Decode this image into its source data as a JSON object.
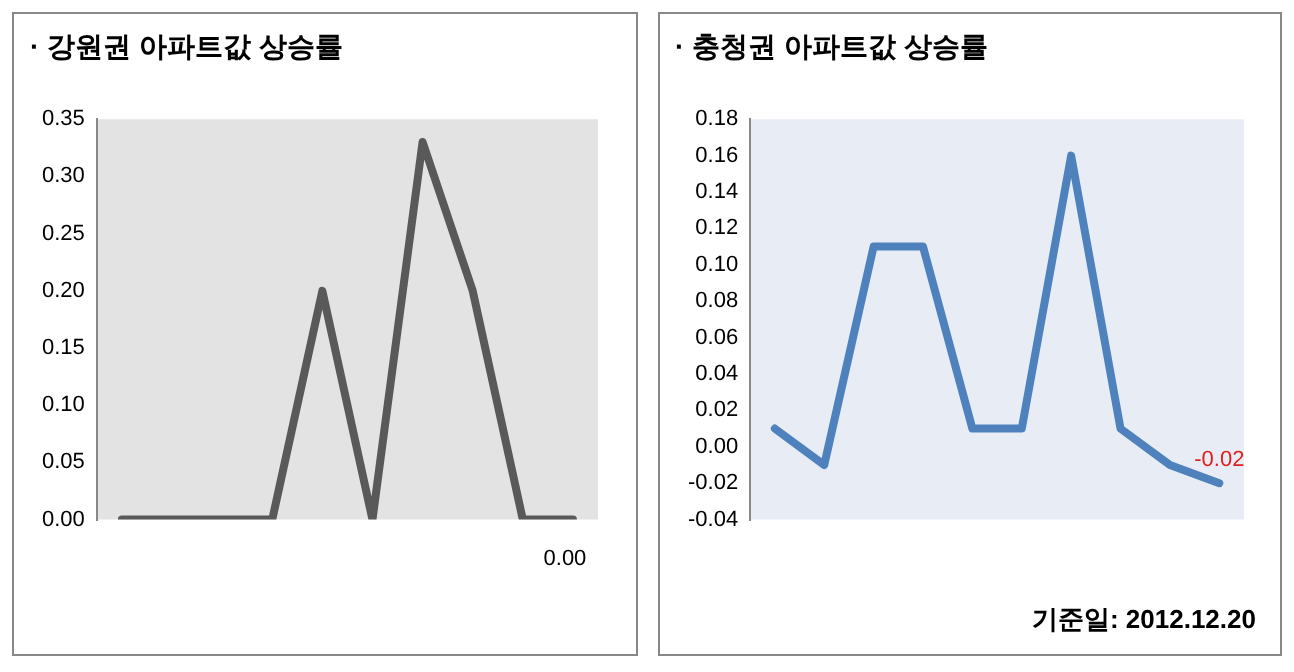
{
  "chart_data": [
    {
      "type": "line",
      "title": "· 강원권 아파트값 상승률",
      "categories": [
        null,
        null,
        null,
        null,
        null,
        null,
        null,
        null,
        null,
        null
      ],
      "series": [
        {
          "color": "#595959",
          "values": [
            0,
            0,
            0,
            0,
            0.2,
            0,
            0.33,
            0.2,
            0,
            0
          ],
          "value_labels": [
            null,
            null,
            null,
            null,
            null,
            null,
            null,
            null,
            null,
            "0.00"
          ]
        }
      ],
      "ylim": [
        0,
        0.35
      ],
      "yticks": [
        {
          "value": 0,
          "label": "0.00"
        },
        {
          "value": 0.05,
          "label": "0.05"
        },
        {
          "value": 0.1,
          "label": "0.10"
        },
        {
          "value": 0.15,
          "label": "0.15"
        },
        {
          "value": 0.2,
          "label": "0.20"
        },
        {
          "value": 0.25,
          "label": "0.25"
        },
        {
          "value": 0.3,
          "label": "0.30"
        },
        {
          "value": 0.35,
          "label": "0.35"
        }
      ],
      "grid": false,
      "legend": false,
      "marker": "none",
      "line_style": "solid"
    },
    {
      "type": "line",
      "title": "· 충청권 아파트값 상승률",
      "categories": [
        null,
        null,
        null,
        null,
        null,
        null,
        null,
        null,
        null,
        null
      ],
      "series": [
        {
          "color": "#4f81bd",
          "values": [
            0.01,
            -0.01,
            0.11,
            0.11,
            0.01,
            0.01,
            0.16,
            0.01,
            -0.01,
            -0.02
          ],
          "value_labels": [
            null,
            null,
            null,
            null,
            null,
            null,
            null,
            null,
            null,
            "-0.02"
          ]
        }
      ],
      "ylim": [
        -0.04,
        0.18
      ],
      "yticks": [
        {
          "value": -0.04,
          "label": "-0.04"
        },
        {
          "value": -0.02,
          "label": "-0.02"
        },
        {
          "value": 0,
          "label": "0.00"
        },
        {
          "value": 0.02,
          "label": "0.02"
        },
        {
          "value": 0.04,
          "label": "0.04"
        },
        {
          "value": 0.06,
          "label": "0.06"
        },
        {
          "value": 0.08,
          "label": "0.08"
        },
        {
          "value": 0.1,
          "label": "0.10"
        },
        {
          "value": 0.12,
          "label": "0.12"
        },
        {
          "value": 0.14,
          "label": "0.14"
        },
        {
          "value": 0.16,
          "label": "0.16"
        },
        {
          "value": 0.18,
          "label": "0.18"
        }
      ],
      "grid": false,
      "legend": false,
      "marker": "none",
      "line_style": "solid",
      "annotations": [
        "기준일: 2012.12.20"
      ]
    }
  ]
}
